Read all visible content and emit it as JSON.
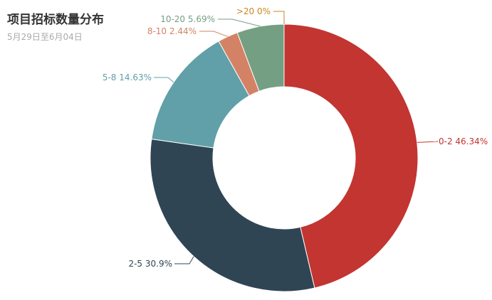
{
  "chart_data": {
    "type": "pie",
    "title": "项目招标数量分布",
    "subtitle": "5月29日至6月04日",
    "slices": [
      {
        "label": "0-2",
        "percent": 46.34,
        "text": "0-2 46.34%",
        "color": "#c23531"
      },
      {
        "label": "2-5",
        "percent": 30.9,
        "text": "2-5 30.9%",
        "color": "#2f4554"
      },
      {
        "label": "5-8",
        "percent": 14.63,
        "text": "5-8 14.63%",
        "color": "#61a0a8"
      },
      {
        "label": "8-10",
        "percent": 2.44,
        "text": "8-10 2.44%",
        "color": "#d48265"
      },
      {
        "label": "10-20",
        "percent": 5.69,
        "text": "10-20 5.69%",
        "color": "#749f83"
      },
      {
        "label": ">20",
        "percent": 0,
        "text": ">20 0%",
        "color": "#ca8622"
      }
    ]
  }
}
